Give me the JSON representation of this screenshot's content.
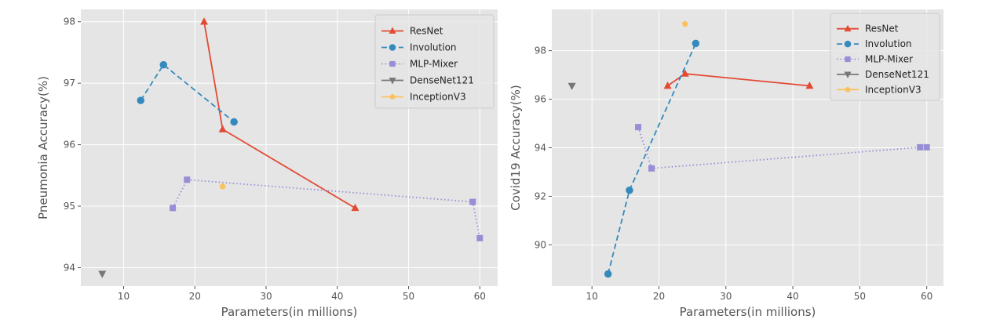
{
  "chart_data": [
    {
      "type": "line",
      "xlabel": "Parameters(in millions)",
      "ylabel": "Pneumonia Accuracy(%)",
      "xlim": [
        4.0,
        62.5
      ],
      "ylim": [
        93.7,
        98.2
      ],
      "xticks": [
        10,
        20,
        30,
        40,
        50,
        60
      ],
      "yticks": [
        94,
        95,
        96,
        97,
        98
      ],
      "grid": true,
      "legend_position": "top-right",
      "series": [
        {
          "name": "ResNet",
          "color": "#E24A33",
          "line_style": "solid",
          "marker": "triangle-up",
          "points": [
            {
              "x": 21.3,
              "y": 98.0
            },
            {
              "x": 23.9,
              "y": 96.25
            },
            {
              "x": 42.5,
              "y": 94.97
            }
          ]
        },
        {
          "name": "Involution",
          "color": "#348ABD",
          "line_style": "dashed",
          "marker": "circle",
          "points": [
            {
              "x": 12.4,
              "y": 96.72
            },
            {
              "x": 15.6,
              "y": 97.3
            },
            {
              "x": 25.5,
              "y": 96.37
            }
          ]
        },
        {
          "name": "MLP-Mixer",
          "color": "#988ED5",
          "line_style": "dotted",
          "marker": "square",
          "points": [
            {
              "x": 16.9,
              "y": 94.97
            },
            {
              "x": 18.9,
              "y": 95.43
            },
            {
              "x": 59.0,
              "y": 95.07
            },
            {
              "x": 60.0,
              "y": 94.48
            }
          ]
        },
        {
          "name": "DenseNet121",
          "color": "#777777",
          "line_style": "solid",
          "marker": "triangle-down",
          "points": [
            {
              "x": 7.0,
              "y": 93.9
            }
          ]
        },
        {
          "name": "InceptionV3",
          "color": "#FBC15E",
          "line_style": "solid",
          "marker": "pentagon",
          "points": [
            {
              "x": 23.9,
              "y": 95.32
            }
          ]
        }
      ]
    },
    {
      "type": "line",
      "xlabel": "Parameters(in millions)",
      "ylabel": "Covid19 Accuracy(%)",
      "xlim": [
        4.0,
        62.5
      ],
      "ylim": [
        88.3,
        99.7
      ],
      "xticks": [
        10,
        20,
        30,
        40,
        50,
        60
      ],
      "yticks": [
        90,
        92,
        94,
        96,
        98
      ],
      "grid": true,
      "legend_position": "top-right",
      "series": [
        {
          "name": "ResNet",
          "color": "#E24A33",
          "line_style": "solid",
          "marker": "triangle-up",
          "points": [
            {
              "x": 21.3,
              "y": 96.55
            },
            {
              "x": 23.9,
              "y": 97.05
            },
            {
              "x": 42.5,
              "y": 96.55
            }
          ]
        },
        {
          "name": "Involution",
          "color": "#348ABD",
          "line_style": "dashed",
          "marker": "circle",
          "points": [
            {
              "x": 12.4,
              "y": 88.8
            },
            {
              "x": 15.6,
              "y": 92.25
            },
            {
              "x": 25.5,
              "y": 98.3
            }
          ]
        },
        {
          "name": "MLP-Mixer",
          "color": "#988ED5",
          "line_style": "dotted",
          "marker": "square",
          "points": [
            {
              "x": 16.9,
              "y": 94.85
            },
            {
              "x": 18.9,
              "y": 93.15
            },
            {
              "x": 59.0,
              "y": 94.02
            },
            {
              "x": 60.0,
              "y": 94.02
            }
          ]
        },
        {
          "name": "DenseNet121",
          "color": "#777777",
          "line_style": "solid",
          "marker": "triangle-down",
          "points": [
            {
              "x": 7.0,
              "y": 96.55
            }
          ]
        },
        {
          "name": "InceptionV3",
          "color": "#FBC15E",
          "line_style": "solid",
          "marker": "pentagon",
          "points": [
            {
              "x": 23.9,
              "y": 99.1
            }
          ]
        }
      ]
    }
  ]
}
